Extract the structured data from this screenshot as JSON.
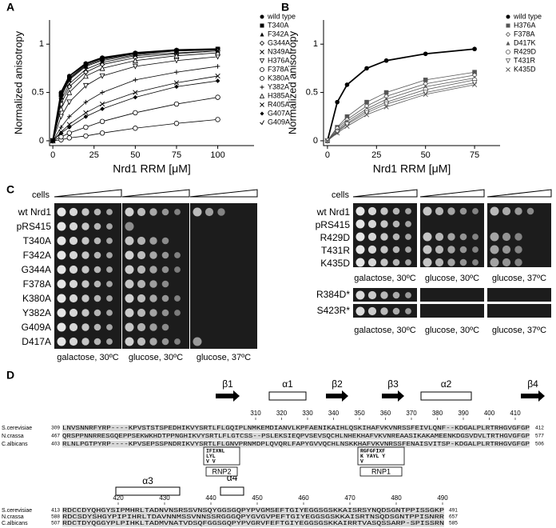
{
  "panel_labels": [
    "A",
    "B",
    "C",
    "D"
  ],
  "chart_data": [
    {
      "type": "line",
      "y_label": "Normalized anisotropy",
      "x_label": "Nrd1 RRM   [μM]",
      "xlim": [
        -2,
        122
      ],
      "ylim": [
        -0.05,
        1.25
      ],
      "xticks": [
        0,
        25,
        50,
        75,
        100
      ],
      "yticks": [
        0,
        0.5,
        1
      ],
      "legend": "right",
      "x": [
        0,
        5,
        10,
        20,
        30,
        50,
        75,
        100
      ],
      "series": [
        {
          "name": "wild type",
          "marker": "circle",
          "color": "#000000",
          "values": [
            0,
            0.5,
            0.67,
            0.8,
            0.86,
            0.91,
            0.94,
            0.95
          ]
        },
        {
          "name": "T340A",
          "marker": "square",
          "color": "#000000",
          "values": [
            0,
            0.48,
            0.65,
            0.79,
            0.85,
            0.9,
            0.93,
            0.95
          ]
        },
        {
          "name": "F342A",
          "marker": "triangle",
          "color": "#000000",
          "values": [
            0,
            0.45,
            0.63,
            0.77,
            0.83,
            0.89,
            0.93,
            0.94
          ]
        },
        {
          "name": "G344A",
          "marker": "diamond-open",
          "color": "#000000",
          "values": [
            0,
            0.38,
            0.56,
            0.71,
            0.79,
            0.86,
            0.9,
            0.93
          ]
        },
        {
          "name": "N349A",
          "marker": "x",
          "color": "#000000",
          "values": [
            0,
            0.42,
            0.59,
            0.74,
            0.81,
            0.88,
            0.91,
            0.93
          ]
        },
        {
          "name": "H376A",
          "marker": "triangle-down-open",
          "color": "#000000",
          "values": [
            0,
            0.25,
            0.4,
            0.57,
            0.67,
            0.77,
            0.83,
            0.87
          ]
        },
        {
          "name": "F378A",
          "marker": "circle-open",
          "color": "#000000",
          "values": [
            0,
            0.01,
            0.03,
            0.05,
            0.08,
            0.13,
            0.18,
            0.22
          ]
        },
        {
          "name": "K380A",
          "marker": "circle-open",
          "color": "#000000",
          "values": [
            0,
            0.04,
            0.08,
            0.14,
            0.2,
            0.29,
            0.38,
            0.45
          ]
        },
        {
          "name": "Y382A",
          "marker": "plus",
          "color": "#000000",
          "values": [
            0,
            0.14,
            0.25,
            0.4,
            0.5,
            0.63,
            0.71,
            0.77
          ]
        },
        {
          "name": "H385A",
          "marker": "triangle-open",
          "color": "#000000",
          "values": [
            0,
            0.33,
            0.5,
            0.67,
            0.75,
            0.83,
            0.88,
            0.91
          ]
        },
        {
          "name": "R405A",
          "marker": "x",
          "color": "#000000",
          "values": [
            0,
            0.09,
            0.17,
            0.29,
            0.38,
            0.5,
            0.6,
            0.67
          ]
        },
        {
          "name": "G407A",
          "marker": "diamond",
          "color": "#000000",
          "values": [
            0,
            0.08,
            0.14,
            0.25,
            0.33,
            0.45,
            0.56,
            0.62
          ]
        },
        {
          "name": "G409A",
          "marker": "tick",
          "color": "#000000",
          "values": [
            0,
            0.46,
            0.64,
            0.78,
            0.84,
            0.9,
            0.93,
            0.94
          ]
        }
      ]
    },
    {
      "type": "line",
      "y_label": "Normalized anisotropy",
      "x_label": "Nrd1 RRM   [μM]",
      "xlim": [
        -2,
        88
      ],
      "ylim": [
        -0.05,
        1.25
      ],
      "xticks": [
        0,
        25,
        50,
        75
      ],
      "yticks": [
        0,
        0.5,
        1
      ],
      "legend": "right",
      "x": [
        0,
        5,
        10,
        20,
        30,
        50,
        75
      ],
      "series": [
        {
          "name": "wild type",
          "marker": "circle",
          "color": "#000000",
          "values": [
            0,
            0.4,
            0.58,
            0.75,
            0.83,
            0.9,
            0.95
          ]
        },
        {
          "name": "H376A",
          "marker": "square",
          "color": "#555555",
          "values": [
            0,
            0.14,
            0.25,
            0.4,
            0.5,
            0.63,
            0.71
          ]
        },
        {
          "name": "F378A",
          "marker": "diamond-open",
          "color": "#555555",
          "values": [
            0,
            0.13,
            0.22,
            0.36,
            0.46,
            0.59,
            0.68
          ]
        },
        {
          "name": "D417K",
          "marker": "triangle",
          "color": "#555555",
          "values": [
            0,
            0.11,
            0.2,
            0.33,
            0.43,
            0.56,
            0.65
          ]
        },
        {
          "name": "R429D",
          "marker": "circle-open",
          "color": "#555555",
          "values": [
            0,
            0.1,
            0.18,
            0.31,
            0.4,
            0.53,
            0.63
          ]
        },
        {
          "name": "T431R",
          "marker": "triangle-down-open",
          "color": "#555555",
          "values": [
            0,
            0.09,
            0.17,
            0.29,
            0.38,
            0.5,
            0.6
          ]
        },
        {
          "name": "K435D",
          "marker": "x",
          "color": "#555555",
          "values": [
            0,
            0.08,
            0.15,
            0.27,
            0.35,
            0.48,
            0.58
          ]
        }
      ]
    }
  ],
  "spot_assay": {
    "left": {
      "header": "cells",
      "strains": [
        "wt Nrd1",
        "pRS415",
        "T340A",
        "F342A",
        "G344A",
        "F378A",
        "K380A",
        "Y382A",
        "G409A",
        "D417A"
      ],
      "conditions": [
        "galactose, 30ºC",
        "glucose, 30ºC",
        "glucose, 37ºC"
      ]
    },
    "right": {
      "header": "cells",
      "strains": [
        "wt Nrd1",
        "pRS415",
        "R429D",
        "T431R",
        "K435D"
      ],
      "extra_strains": [
        "R384D*",
        "S423R*"
      ],
      "conditions": [
        "galactose, 30ºC",
        "glucose, 30ºC",
        "glucose, 37ºC"
      ]
    }
  },
  "alignment": {
    "species": [
      "S.cerevisiae",
      "N.crassa",
      "C.albicans"
    ],
    "blocks": [
      {
        "start": [
          309,
          467,
          403
        ],
        "end": [
          412,
          577,
          506
        ],
        "ruler": [
          310,
          320,
          330,
          340,
          350,
          360,
          370,
          380,
          390,
          400,
          410
        ],
        "structure": [
          {
            "label": "β1",
            "kind": "strand"
          },
          {
            "label": "α1",
            "kind": "helix"
          },
          {
            "label": "β2",
            "kind": "strand"
          },
          {
            "label": "β3",
            "kind": "strand"
          },
          {
            "label": "α2",
            "kind": "helix"
          },
          {
            "label": "β4",
            "kind": "strand"
          }
        ],
        "sequences": [
          "LNVSNNRFYRP----KPVSTSTSPEDHIKVYSRTLFLGQIPLNMKEMDIANVLKPFAENIKAIHLQSKIHAFVKVNRSSFEIVLQNF--KDGALPLRTRHGVGFGP",
          "QRSPPNNRRESGQEPPSEKWKHDTPPNGHIKVYSRTLFLGTCSS--PSLEKSIEQPVSEVSQCHLNHEKHAFVKVNREAASIKAKAMEENKDGSVDVLTRTHGVGFGP",
          "RLNLPGTPYRP----KPVSEPSSPNDRIKVYSRTLFLGNVPRNMDPLQVQRLFAPYGVVQCHLNSKKHAFVKVNRSSFENAISVITSP-KDGALPLRTRHGVGFGP"
        ]
      },
      {
        "start": [
          413,
          588,
          507
        ],
        "end": [
          491,
          657,
          585
        ],
        "ruler": [
          420,
          430,
          440,
          450,
          460,
          470,
          480,
          490
        ],
        "structure": [
          {
            "label": "α3",
            "kind": "helix"
          },
          {
            "label": "α4",
            "kind": "helix"
          }
        ],
        "sequences": [
          "RDCCDYQHGYSIPMHRLTADNVNSRSSVNSQYGGSGQPYPVGMSEFTGIYEGGSGSKKAISRSYNQDSGNTPPISSGKP",
          "RDCSDYSHGYPIPIHRLTDAVNNMSSVNNSSRGGGQPYGVGVPEFTGIYEGGSGSKKAISRTNSQDSGNTPPISNRR",
          "RDCTDYQGGYPLPIHKLTADMVNATVDSQFGGSGQPYPVGRVFEFTGIYEGGSGSKKAIRRTVASQSSARP-SPISSRN"
        ]
      }
    ],
    "motifs": [
      {
        "name": "RNP2",
        "consensus": [
          "IFIXNL",
          "LYL",
          "V V"
        ]
      },
      {
        "name": "RNP1",
        "consensus": [
          "RGFGFIXF",
          "K YAYL Y",
          "V"
        ]
      }
    ]
  }
}
